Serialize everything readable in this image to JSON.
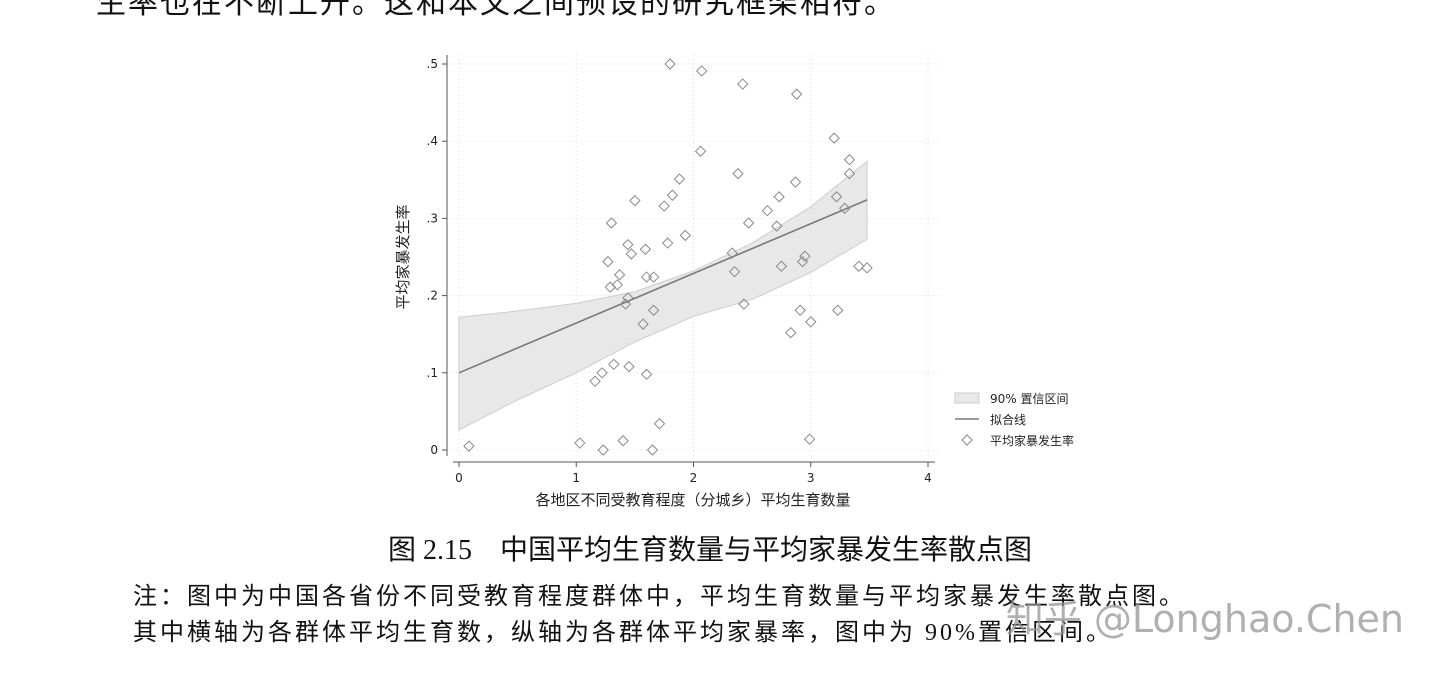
{
  "document": {
    "top_text": "生率也在不断上升。这和本文之间预设的研究框架相符。",
    "caption": "图 2.15　中国平均生育数量与平均家暴发生率散点图",
    "note_lines": [
      "注：图中为中国各省份不同受教育程度群体中，平均生育数量与平均家暴发生率散点图。",
      "其中横轴为各群体平均生育数，纵轴为各群体平均家暴率，图中为 90%置信区间。"
    ],
    "watermark": "知乎 @Longhao.Chen"
  },
  "chart_data": {
    "type": "scatter",
    "x_label": "各地区不同受教育程度（分城乡）平均生育数量",
    "y_label": "平均家暴发生率",
    "xlim": [
      0,
      4
    ],
    "ylim": [
      0,
      0.5
    ],
    "xticks": [
      0,
      1,
      2,
      3,
      4
    ],
    "yticks": [
      0,
      {
        "value": 0.1,
        "label": ".1"
      },
      {
        "value": 0.2,
        "label": ".2"
      },
      {
        "value": 0.3,
        "label": ".3"
      },
      {
        "value": 0.4,
        "label": ".4"
      },
      {
        "value": 0.5,
        "label": ".5"
      }
    ],
    "grid": true,
    "band": {
      "name": "90% 置信区间",
      "color": "#e8e8e8",
      "x": [
        0,
        0.5,
        1,
        1.5,
        2,
        2.5,
        3,
        3.48
      ],
      "upper": [
        0.172,
        0.18,
        0.19,
        0.205,
        0.232,
        0.268,
        0.315,
        0.374
      ],
      "lower": [
        0.026,
        0.065,
        0.1,
        0.14,
        0.173,
        0.195,
        0.23,
        0.273
      ]
    },
    "fit": {
      "name": "拟合线",
      "color": "#7a7a7a",
      "x": [
        0,
        3.48
      ],
      "values": [
        0.1,
        0.324
      ]
    },
    "series": [
      {
        "name": "平均家暴发生率",
        "color": "#8a8a8a",
        "x": [
          0.085,
          1.03,
          1.23,
          1.4,
          1.65,
          1.71,
          2.99,
          1.16,
          1.22,
          1.32,
          1.45,
          1.6,
          1.27,
          1.3,
          1.29,
          1.35,
          1.37,
          1.42,
          1.44,
          1.44,
          1.47,
          1.5,
          1.57,
          1.59,
          1.6,
          1.66,
          1.66,
          1.75,
          1.78,
          1.8,
          1.82,
          1.88,
          1.93,
          2.06,
          2.07,
          2.33,
          2.35,
          2.38,
          2.42,
          2.43,
          2.47,
          2.63,
          2.71,
          2.73,
          2.75,
          2.83,
          2.87,
          2.88,
          2.91,
          2.93,
          2.95,
          3.0,
          3.2,
          3.22,
          3.23,
          3.29,
          3.33,
          3.33,
          3.41,
          3.48
        ],
        "values": [
          0.005,
          0.009,
          0.0,
          0.012,
          0.0,
          0.034,
          0.014,
          0.089,
          0.1,
          0.111,
          0.108,
          0.098,
          0.244,
          0.294,
          0.211,
          0.214,
          0.227,
          0.189,
          0.197,
          0.266,
          0.254,
          0.323,
          0.163,
          0.26,
          0.224,
          0.224,
          0.181,
          0.316,
          0.268,
          0.5,
          0.33,
          0.351,
          0.278,
          0.387,
          0.491,
          0.255,
          0.231,
          0.358,
          0.474,
          0.189,
          0.294,
          0.31,
          0.29,
          0.328,
          0.238,
          0.152,
          0.347,
          0.461,
          0.181,
          0.244,
          0.251,
          0.166,
          0.404,
          0.328,
          0.181,
          0.313,
          0.376,
          0.358,
          0.238,
          0.236
        ]
      }
    ]
  }
}
